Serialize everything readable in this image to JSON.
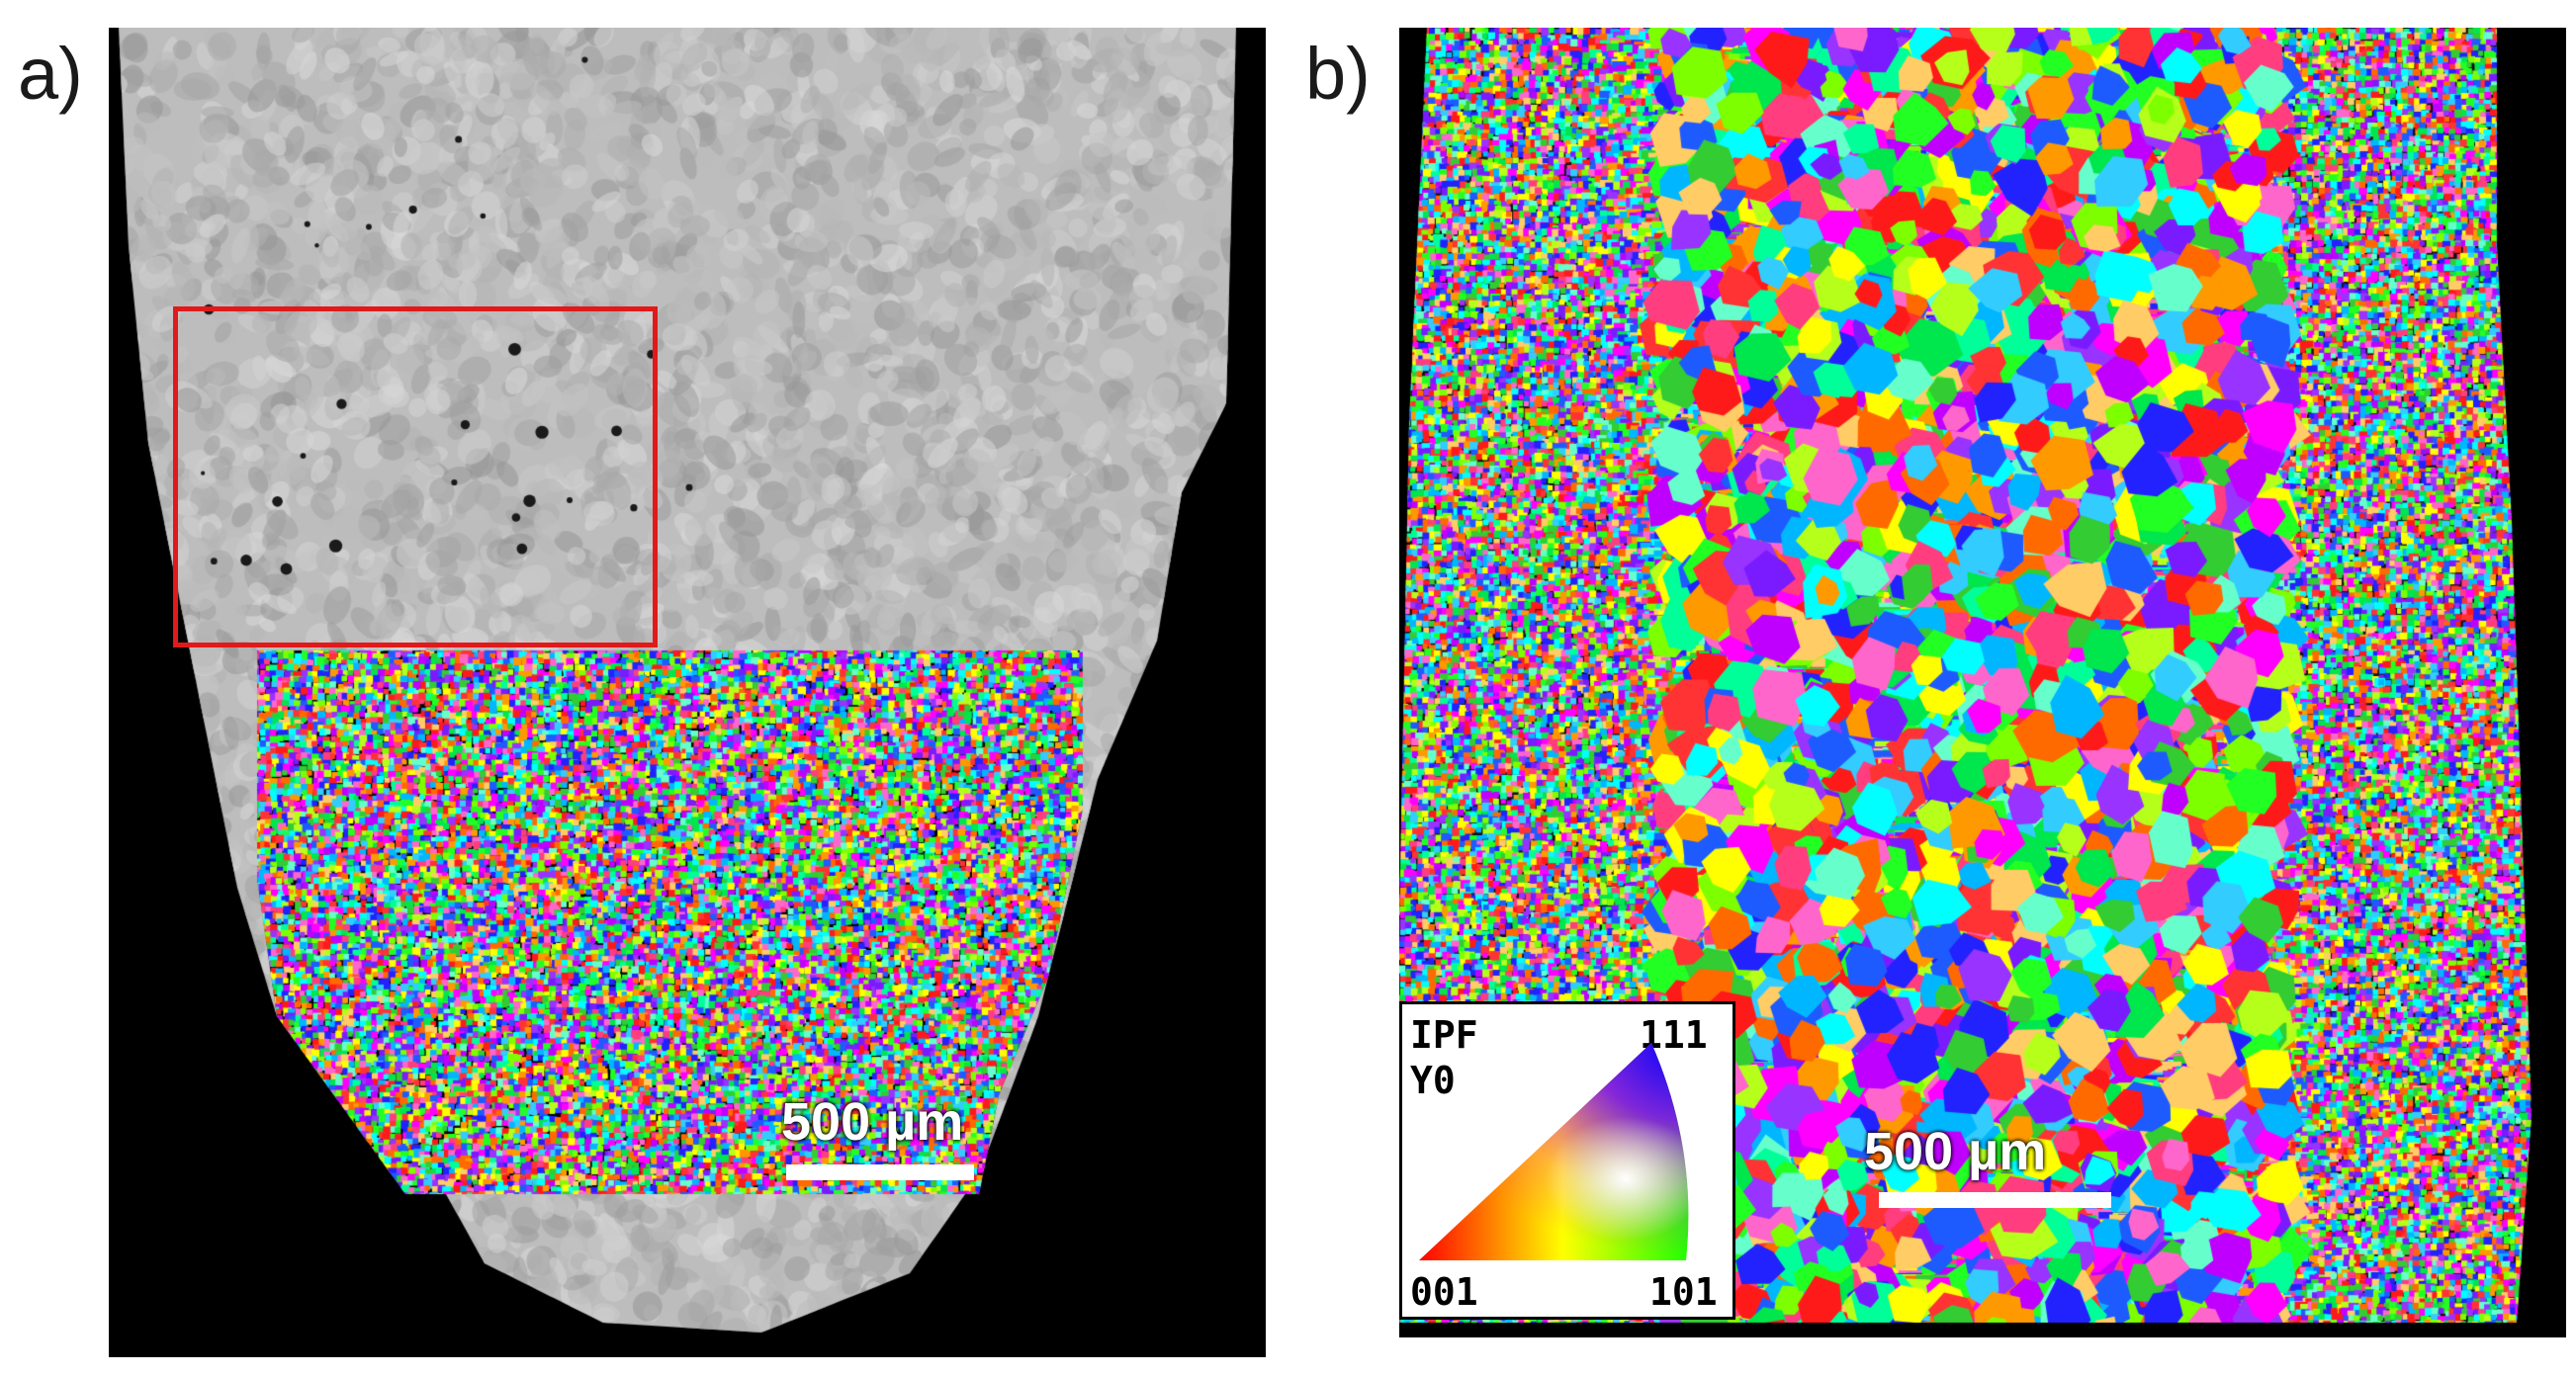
{
  "figure": {
    "panel_a": {
      "label": "a)",
      "scale_bar": {
        "text": "500 µm"
      }
    },
    "panel_b": {
      "label": "b)",
      "scale_bar": {
        "text": "500 µm"
      },
      "ipf_legend": {
        "title_line1": "IPF",
        "title_line2": "Y0",
        "corner_top": "111",
        "corner_bottom_left": "001",
        "corner_bottom_right": "101"
      }
    }
  },
  "colors": {
    "roi_box": "#e01a1a",
    "background": "#000000",
    "scale_bar": "#ffffff"
  }
}
